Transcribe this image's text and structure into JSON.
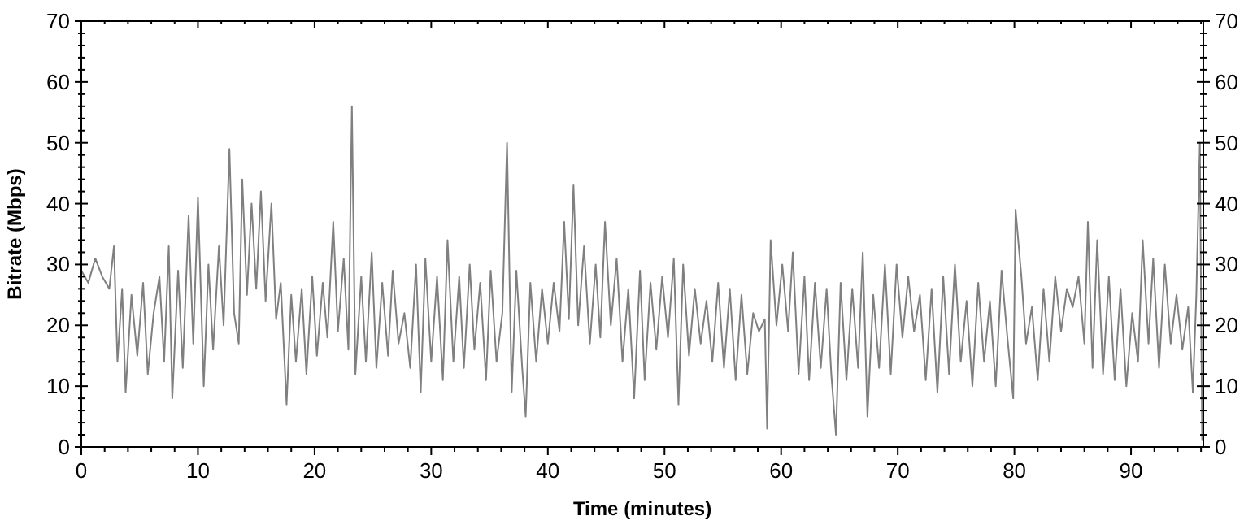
{
  "chart_data": {
    "type": "line",
    "xlabel": "Time (minutes)",
    "ylabel": "Bitrate (Mbps)",
    "xlim": [
      0,
      96.2
    ],
    "ylim": [
      0,
      70
    ],
    "y2lim": [
      0,
      70
    ],
    "xticks": [
      0,
      {
        "value": 2,
        "label": null
      },
      {
        "value": 4,
        "label": null
      },
      {
        "value": 6,
        "label": null
      },
      {
        "value": 8,
        "label": null
      },
      10,
      {
        "value": 12,
        "label": null
      },
      {
        "value": 14,
        "label": null
      },
      {
        "value": 16,
        "label": null
      },
      {
        "value": 18,
        "label": null
      },
      20,
      {
        "value": 22,
        "label": null
      },
      {
        "value": 24,
        "label": null
      },
      {
        "value": 26,
        "label": null
      },
      {
        "value": 28,
        "label": null
      },
      30,
      {
        "value": 32,
        "label": null
      },
      {
        "value": 34,
        "label": null
      },
      {
        "value": 36,
        "label": null
      },
      {
        "value": 38,
        "label": null
      },
      40,
      {
        "value": 42,
        "label": null
      },
      {
        "value": 44,
        "label": null
      },
      {
        "value": 46,
        "label": null
      },
      {
        "value": 48,
        "label": null
      },
      50,
      {
        "value": 52,
        "label": null
      },
      {
        "value": 54,
        "label": null
      },
      {
        "value": 56,
        "label": null
      },
      {
        "value": 58,
        "label": null
      },
      60,
      {
        "value": 62,
        "label": null
      },
      {
        "value": 64,
        "label": null
      },
      {
        "value": 66,
        "label": null
      },
      {
        "value": 68,
        "label": null
      },
      70,
      {
        "value": 72,
        "label": null
      },
      {
        "value": 74,
        "label": null
      },
      {
        "value": 76,
        "label": null
      },
      {
        "value": 78,
        "label": null
      },
      80,
      {
        "value": 82,
        "label": null
      },
      {
        "value": 84,
        "label": null
      },
      {
        "value": 86,
        "label": null
      },
      {
        "value": 88,
        "label": null
      },
      90,
      {
        "value": 92,
        "label": null
      },
      {
        "value": 94,
        "label": null
      },
      {
        "value": 96,
        "label": null
      }
    ],
    "yticks": [
      0,
      {
        "value": 2,
        "label": null
      },
      {
        "value": 4,
        "label": null
      },
      {
        "value": 6,
        "label": null
      },
      {
        "value": 8,
        "label": null
      },
      10,
      {
        "value": 12,
        "label": null
      },
      {
        "value": 14,
        "label": null
      },
      {
        "value": 16,
        "label": null
      },
      {
        "value": 18,
        "label": null
      },
      20,
      {
        "value": 22,
        "label": null
      },
      {
        "value": 24,
        "label": null
      },
      {
        "value": 26,
        "label": null
      },
      {
        "value": 28,
        "label": null
      },
      30,
      {
        "value": 32,
        "label": null
      },
      {
        "value": 34,
        "label": null
      },
      {
        "value": 36,
        "label": null
      },
      {
        "value": 38,
        "label": null
      },
      40,
      {
        "value": 42,
        "label": null
      },
      {
        "value": 44,
        "label": null
      },
      {
        "value": 46,
        "label": null
      },
      {
        "value": 48,
        "label": null
      },
      50,
      {
        "value": 52,
        "label": null
      },
      {
        "value": 54,
        "label": null
      },
      {
        "value": 56,
        "label": null
      },
      {
        "value": 58,
        "label": null
      },
      60,
      {
        "value": 62,
        "label": null
      },
      {
        "value": 64,
        "label": null
      },
      {
        "value": 66,
        "label": null
      },
      {
        "value": 68,
        "label": null
      },
      70
    ],
    "y2ticks": [
      0,
      10,
      20,
      30,
      40,
      50,
      60,
      70
    ],
    "grid": false,
    "marker": "none",
    "line_style": "solid",
    "series": [
      {
        "color": "#808080",
        "x": [
          0,
          0.6,
          1.2,
          1.8,
          2.4,
          2.8,
          3.1,
          3.5,
          3.8,
          4.3,
          4.8,
          5.3,
          5.7,
          6.2,
          6.7,
          7.1,
          7.5,
          7.8,
          8.3,
          8.7,
          9.2,
          9.6,
          10,
          10.5,
          10.9,
          11.3,
          11.8,
          12.2,
          12.7,
          13.1,
          13.5,
          13.8,
          14.2,
          14.6,
          15,
          15.4,
          15.8,
          16.3,
          16.7,
          17.1,
          17.6,
          18,
          18.4,
          18.9,
          19.3,
          19.8,
          20.2,
          20.7,
          21.1,
          21.6,
          22,
          22.5,
          22.9,
          23.2,
          23.5,
          24,
          24.4,
          24.9,
          25.3,
          25.8,
          26.3,
          26.7,
          27.2,
          27.7,
          28.2,
          28.7,
          29.1,
          29.5,
          30,
          30.5,
          31,
          31.4,
          31.9,
          32.4,
          32.8,
          33.3,
          33.7,
          34.2,
          34.7,
          35.1,
          35.6,
          36.1,
          36.5,
          36.9,
          37.3,
          37.8,
          38.1,
          38.5,
          39,
          39.5,
          40,
          40.5,
          41,
          41.4,
          41.8,
          42.2,
          42.6,
          43.1,
          43.6,
          44.1,
          44.5,
          44.9,
          45.4,
          45.9,
          46.4,
          46.9,
          47.4,
          47.9,
          48.3,
          48.8,
          49.3,
          49.8,
          50.3,
          50.8,
          51.2,
          51.6,
          52.1,
          52.6,
          53.1,
          53.6,
          54.1,
          54.6,
          55.1,
          55.6,
          56.1,
          56.6,
          57.1,
          57.6,
          58.1,
          58.6,
          58.8,
          59.1,
          59.6,
          60.1,
          60.6,
          61,
          61.5,
          62,
          62.4,
          62.9,
          63.4,
          63.9,
          64.3,
          64.7,
          65.1,
          65.6,
          66.1,
          66.6,
          67,
          67.4,
          67.9,
          68.4,
          68.9,
          69.4,
          69.9,
          70.4,
          70.9,
          71.4,
          71.9,
          72.4,
          72.9,
          73.4,
          73.9,
          74.4,
          74.9,
          75.4,
          75.9,
          76.4,
          76.9,
          77.4,
          77.9,
          78.4,
          78.9,
          79.4,
          79.9,
          80.1,
          80.6,
          81,
          81.5,
          82,
          82.5,
          83,
          83.5,
          84,
          84.5,
          85,
          85.5,
          86,
          86.3,
          86.7,
          87.1,
          87.6,
          88.1,
          88.6,
          89.1,
          89.6,
          90.1,
          90.6,
          91,
          91.5,
          91.9,
          92.4,
          92.9,
          93.4,
          93.9,
          94.4,
          94.9,
          95.3,
          95.6,
          95.9,
          96.1
        ],
        "values": [
          29,
          27,
          31,
          28,
          26,
          33,
          14,
          26,
          9,
          25,
          15,
          27,
          12,
          22,
          28,
          14,
          33,
          8,
          29,
          13,
          38,
          17,
          41,
          10,
          30,
          16,
          33,
          20,
          49,
          22,
          17,
          44,
          25,
          40,
          26,
          42,
          24,
          40,
          21,
          27,
          7,
          25,
          14,
          26,
          12,
          28,
          15,
          27,
          18,
          37,
          19,
          31,
          16,
          56,
          12,
          28,
          14,
          32,
          13,
          27,
          15,
          29,
          17,
          22,
          13,
          30,
          9,
          31,
          14,
          28,
          11,
          34,
          14,
          28,
          13,
          30,
          16,
          27,
          11,
          29,
          14,
          22,
          50,
          9,
          29,
          13,
          5,
          27,
          14,
          26,
          17,
          27,
          19,
          37,
          21,
          43,
          20,
          33,
          17,
          30,
          18,
          37,
          20,
          31,
          14,
          26,
          8,
          29,
          11,
          27,
          16,
          28,
          18,
          31,
          7,
          30,
          15,
          26,
          17,
          24,
          14,
          27,
          13,
          26,
          11,
          25,
          12,
          22,
          19,
          21,
          3,
          34,
          20,
          30,
          19,
          32,
          12,
          28,
          11,
          27,
          13,
          26,
          12,
          2,
          27,
          11,
          26,
          13,
          32,
          5,
          25,
          13,
          30,
          12,
          30,
          18,
          28,
          19,
          25,
          11,
          26,
          9,
          28,
          12,
          30,
          14,
          24,
          10,
          27,
          14,
          24,
          10,
          29,
          18,
          8,
          39,
          28,
          17,
          23,
          11,
          26,
          14,
          28,
          19,
          26,
          23,
          28,
          17,
          37,
          13,
          34,
          12,
          28,
          11,
          26,
          10,
          22,
          14,
          34,
          17,
          31,
          13,
          30,
          17,
          25,
          16,
          23,
          9,
          25,
          50,
          1
        ]
      }
    ]
  }
}
